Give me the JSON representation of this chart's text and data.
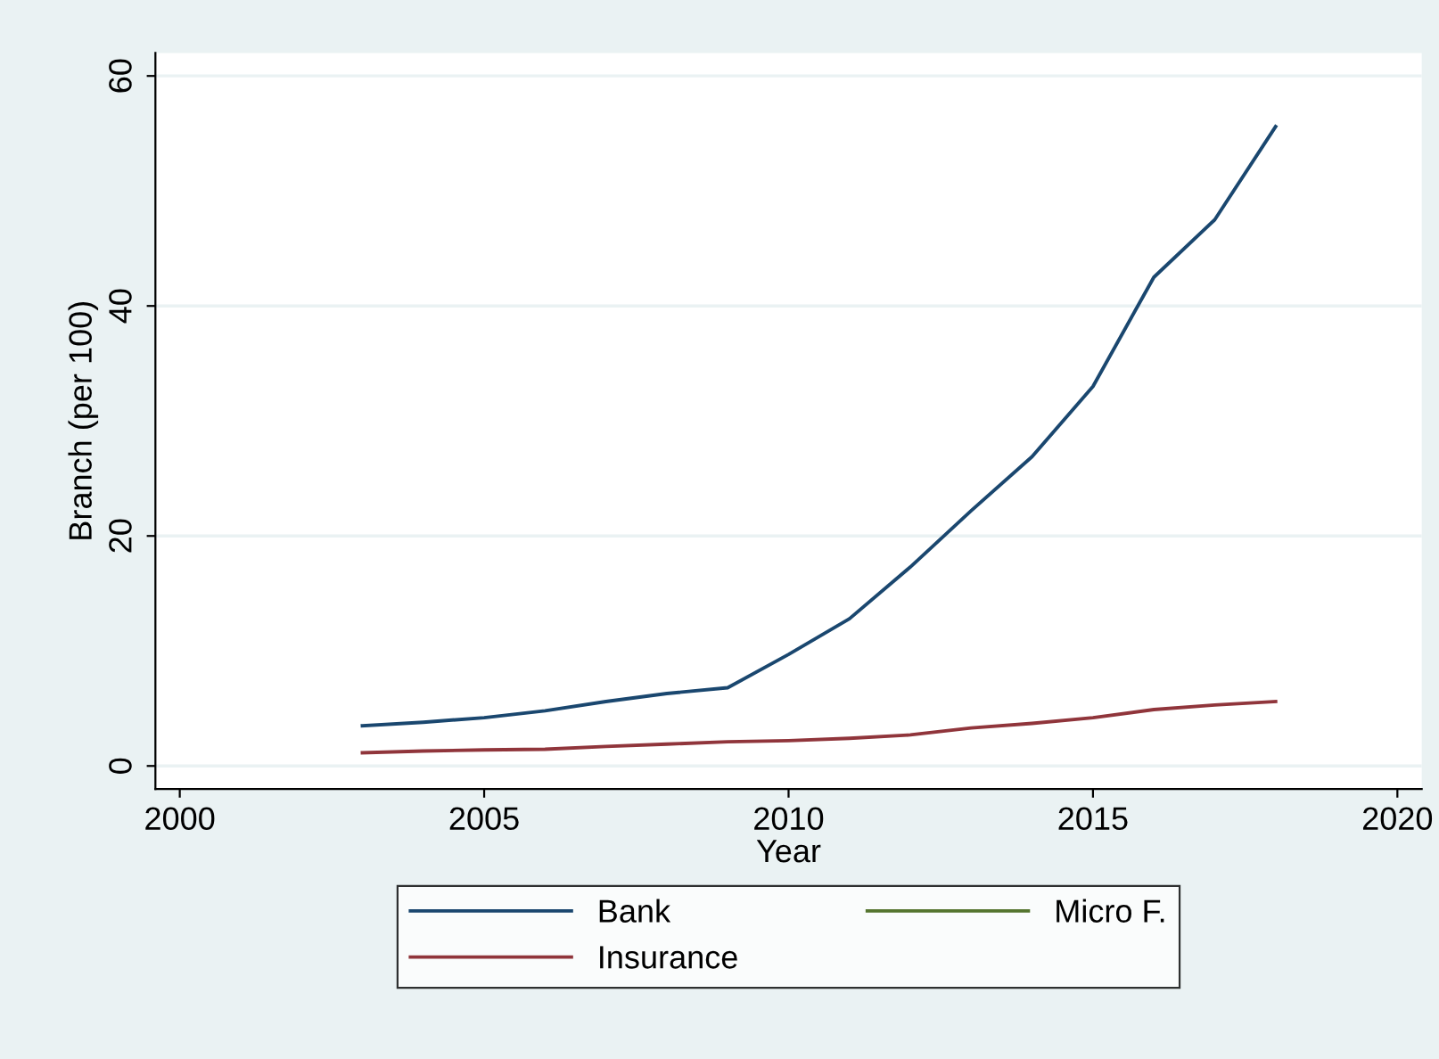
{
  "chart_data": {
    "type": "line",
    "xlabel": "Year",
    "ylabel": "Branch (per 100)",
    "x": [
      2003,
      2004,
      2005,
      2006,
      2007,
      2008,
      2009,
      2010,
      2011,
      2012,
      2013,
      2014,
      2015,
      2016,
      2017,
      2018
    ],
    "series": [
      {
        "name": "Bank",
        "color": "#1a476f",
        "values": [
          3.5,
          3.8,
          4.2,
          4.8,
          5.6,
          6.3,
          6.8,
          9.7,
          12.8,
          17.3,
          22.2,
          26.9,
          33.0,
          42.5,
          47.5,
          55.6
        ]
      },
      {
        "name": "Insurance",
        "color": "#90353b",
        "values": [
          1.15,
          1.3,
          1.4,
          1.45,
          1.7,
          1.9,
          2.1,
          2.2,
          2.4,
          2.7,
          3.3,
          3.7,
          4.2,
          4.9,
          5.3,
          5.6
        ]
      },
      {
        "name": "Micro F.",
        "color": "#55752f",
        "values": [
          null,
          null,
          null,
          null,
          null,
          null,
          null,
          null,
          null,
          null,
          null,
          null,
          null,
          null,
          null,
          null
        ]
      }
    ],
    "xlim": [
      1999.6,
      2020.4
    ],
    "ylim": [
      -2,
      62
    ],
    "xticks": [
      2000,
      2005,
      2010,
      2015,
      2020
    ],
    "yticks": [
      0,
      20,
      40,
      60
    ],
    "grid": "y",
    "legend": "bottom",
    "line_style": "solid",
    "marker": "none"
  }
}
